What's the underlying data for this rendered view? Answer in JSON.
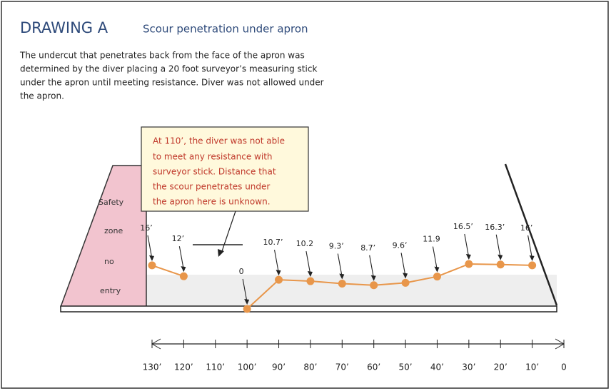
{
  "header": {
    "title": "DRAWING A",
    "subtitle": "Scour penetration under apron"
  },
  "description": [
    "The undercut that penetrates back from the face of the apron was",
    "determined by the diver placing a 20 foot surveyor’s measuring stick",
    "under the apron until meeting resistance. Diver was not allowed under",
    "the apron."
  ],
  "callout": [
    "At 110’, the diver was not able",
    "to meet any resistance with",
    "surveyor stick. Distance that",
    "the scour penetrates under",
    "the apron here is unknown."
  ],
  "zone_label": [
    "Safety",
    "zone",
    "no",
    "entry"
  ],
  "chart_data": {
    "type": "line",
    "x": [
      130,
      120,
      110,
      100,
      90,
      80,
      70,
      60,
      50,
      40,
      30,
      20,
      10
    ],
    "values": [
      16,
      12,
      null,
      0,
      10.7,
      10.2,
      9.3,
      8.7,
      9.6,
      11.9,
      16.5,
      16.3,
      16
    ],
    "value_labels": [
      "16’",
      "12’",
      null,
      "0",
      "10.7’",
      "10.2",
      "9.3’",
      "8.7’",
      "9.6’",
      "11.9",
      "16.5’",
      "16.3’",
      "16’"
    ],
    "color": "#e8964a",
    "xlim": [
      130,
      0
    ],
    "xticks": [
      {
        "value": 130,
        "label": "130’"
      },
      {
        "value": 120,
        "label": "120’"
      },
      {
        "value": 110,
        "label": "110’"
      },
      {
        "value": 100,
        "label": "100’"
      },
      {
        "value": 90,
        "label": "90’"
      },
      {
        "value": 80,
        "label": "80’"
      },
      {
        "value": 70,
        "label": "70’"
      },
      {
        "value": 60,
        "label": "60’"
      },
      {
        "value": 50,
        "label": "50’"
      },
      {
        "value": 40,
        "label": "40’"
      },
      {
        "value": 30,
        "label": "30’"
      },
      {
        "value": 20,
        "label": "20’"
      },
      {
        "value": 10,
        "label": "10’"
      },
      0
    ]
  }
}
